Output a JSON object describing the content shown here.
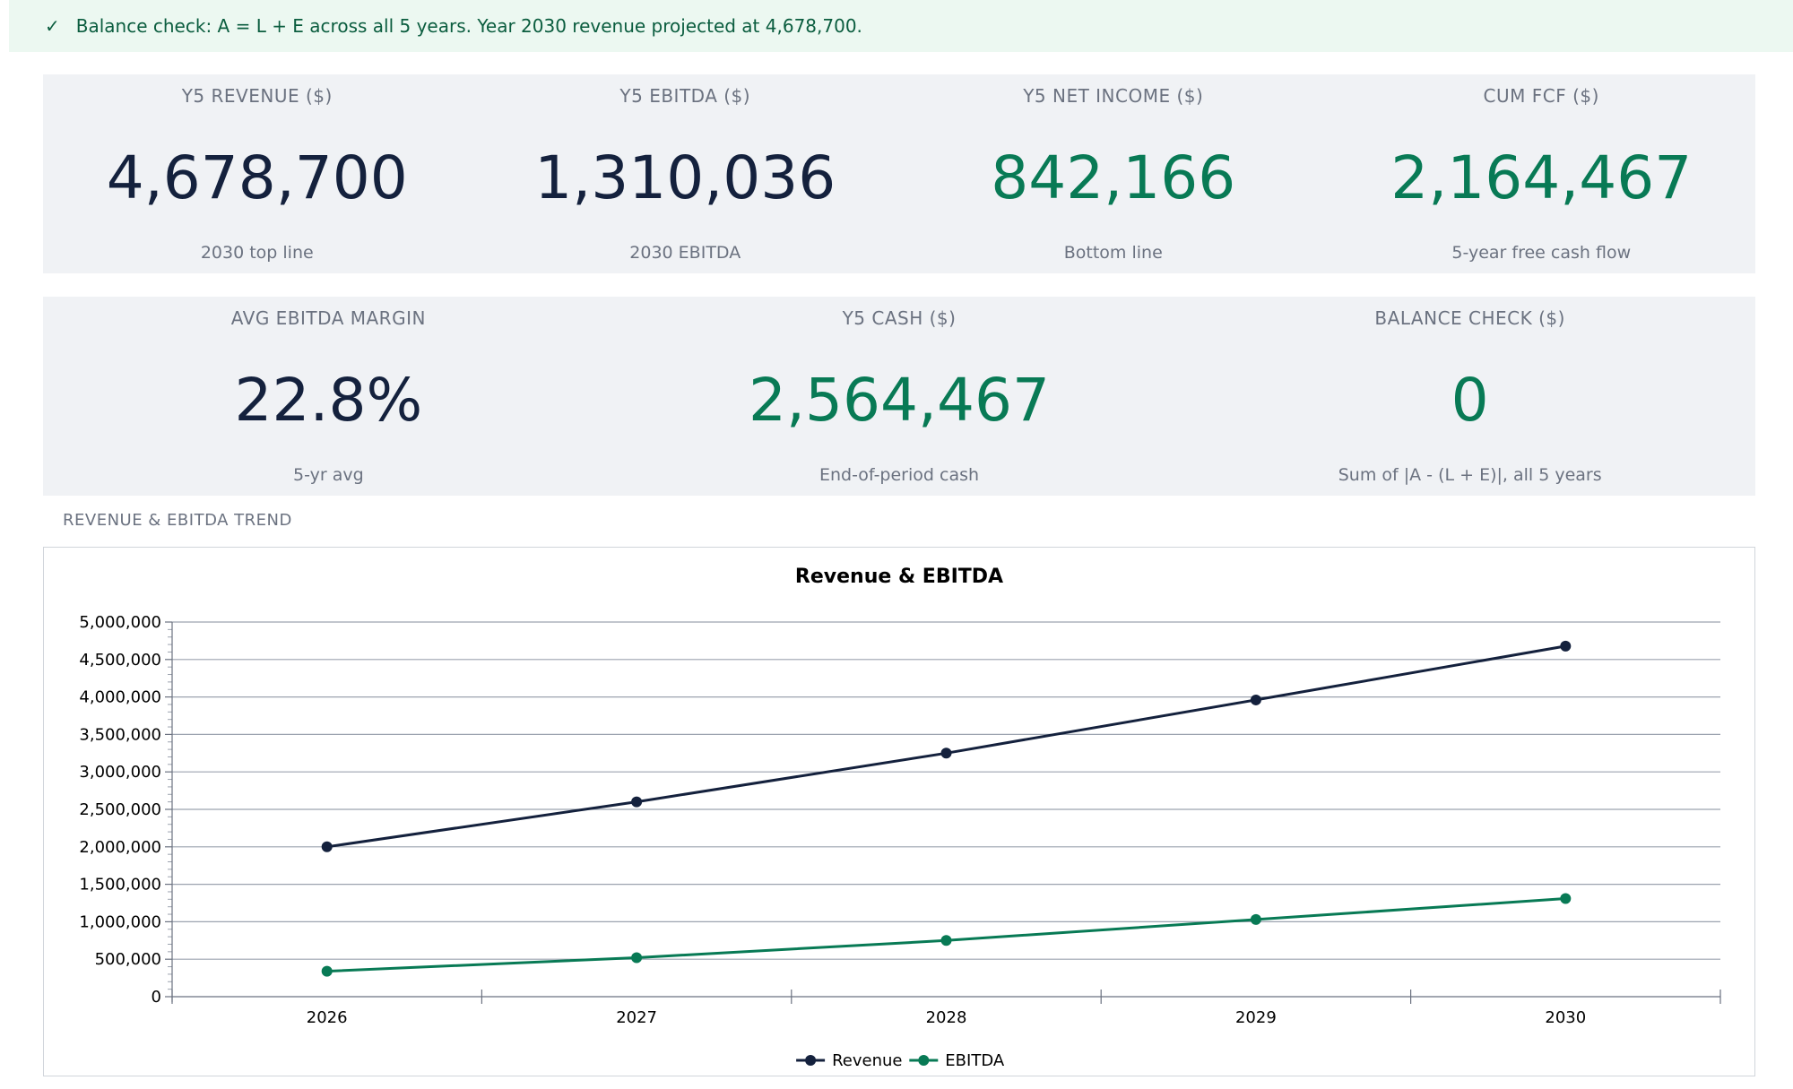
{
  "banner": {
    "check_icon": "check-icon",
    "check_glyph": "✓",
    "text": "Balance check: A = L + E across all 5 years. Year 2030 revenue projected at 4,678,700."
  },
  "kpis_row1": [
    {
      "label": "Y5 REVENUE ($)",
      "value": "4,678,700",
      "sub": "2030 top line"
    },
    {
      "label": "Y5 EBITDA ($)",
      "value": "1,310,036",
      "sub": "2030 EBITDA"
    },
    {
      "label": "Y5 NET INCOME ($)",
      "value": "842,166",
      "sub": "Bottom line"
    },
    {
      "label": "CUM FCF ($)",
      "value": "2,164,467",
      "sub": "5-year free cash flow"
    }
  ],
  "kpis_row2": [
    {
      "label": "AVG EBITDA MARGIN",
      "value": "22.8%",
      "sub": "5-yr avg"
    },
    {
      "label": "Y5 CASH ($)",
      "value": "2,564,467",
      "sub": "End-of-period cash"
    },
    {
      "label": "BALANCE CHECK ($)",
      "value": "0",
      "sub": "Sum of |A - (L + E)|, all 5 years"
    }
  ],
  "colors": {
    "navy": "#14213d",
    "green": "#087a55",
    "revenue_line": "#14213d",
    "ebitda_line": "#087a55"
  },
  "section": {
    "trend_title": "REVENUE & EBITDA TREND"
  },
  "chart_data": {
    "type": "line",
    "title": "Revenue & EBITDA",
    "xlabel": "",
    "ylabel": "",
    "categories": [
      "2026",
      "2027",
      "2028",
      "2029",
      "2030"
    ],
    "series": [
      {
        "name": "Revenue",
        "values": [
          2000000,
          2600000,
          3250000,
          3960000,
          4678700
        ]
      },
      {
        "name": "EBITDA",
        "values": [
          340000,
          520000,
          750000,
          1030000,
          1310036
        ]
      }
    ],
    "ylim": [
      0,
      5000000
    ],
    "y_ticks": [
      0,
      500000,
      1000000,
      1500000,
      2000000,
      2500000,
      3000000,
      3500000,
      4000000,
      4500000,
      5000000
    ],
    "y_tick_labels": [
      "0",
      "500,000",
      "1,000,000",
      "1,500,000",
      "2,000,000",
      "2,500,000",
      "3,000,000",
      "3,500,000",
      "4,000,000",
      "4,500,000",
      "5,000,000"
    ],
    "grid": true,
    "legend": "bottom-center"
  }
}
